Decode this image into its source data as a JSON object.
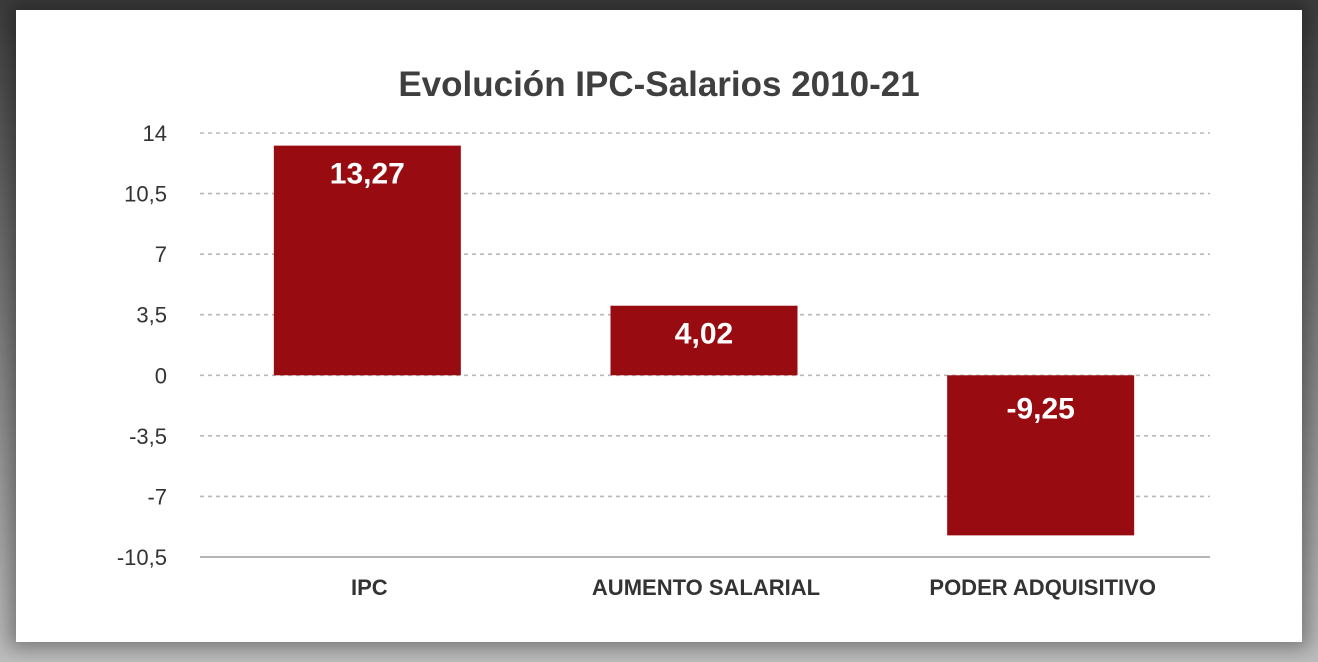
{
  "chart_data": {
    "type": "bar",
    "title": "Evolución IPC-Salarios 2010-21",
    "categories": [
      "IPC",
      "AUMENTO SALARIAL",
      "PODER ADQUISITIVO"
    ],
    "values": [
      13.27,
      4.02,
      -9.25
    ],
    "data_labels": [
      "13,27",
      "4,02",
      "-9,25"
    ],
    "ylim": [
      -10.5,
      14
    ],
    "yticks": [
      14,
      10.5,
      7,
      3.5,
      0,
      -3.5,
      -7,
      -10.5
    ],
    "ytick_labels": [
      "14",
      "10,5",
      "7",
      "3,5",
      "0",
      "-3,5",
      "-7",
      "-10,5"
    ],
    "xlabel": "",
    "ylabel": "",
    "grid": true,
    "bar_color": "#970b11",
    "label_color": "#ffffff"
  }
}
